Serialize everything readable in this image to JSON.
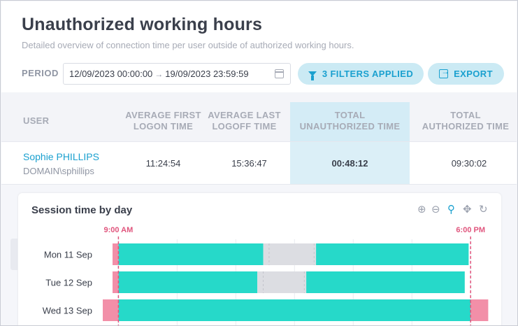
{
  "header": {
    "title": "Unauthorized working hours",
    "subtitle": "Detailed overview of connection time per user outside of authorized working hours."
  },
  "period": {
    "label": "PERIOD",
    "start": "12/09/2023 00:00:00",
    "arrow": "→",
    "end": "19/09/2023 23:59:59"
  },
  "actions": {
    "filters_label": "3 FILTERS APPLIED",
    "export_label": "EXPORT"
  },
  "table": {
    "headers": {
      "user": "USER",
      "avg_first_1": "AVERAGE FIRST",
      "avg_first_2": "LOGON TIME",
      "avg_last_1": "AVERAGE LAST",
      "avg_last_2": "LOGOFF TIME",
      "total_unauth_1": "TOTAL",
      "total_unauth_2": "UNAUTHORIZED TIME",
      "total_auth_1": "TOTAL",
      "total_auth_2": "AUTHORIZED TIME"
    },
    "row": {
      "user_name": "Sophie PHILLIPS",
      "user_domain": "DOMAIN\\sphillips",
      "avg_first_logon": "11:24:54",
      "avg_last_logoff": "15:36:47",
      "total_unauthorized": "00:48:12",
      "total_authorized": "09:30:02"
    }
  },
  "chart": {
    "title": "Session time by day",
    "toolbar_icons": [
      "zoom-in-icon",
      "zoom-out-icon",
      "magnifier-icon",
      "pan-icon",
      "reset-icon"
    ],
    "colors": {
      "authorized": "#26d9c9",
      "unauthorized": "#f28fa8",
      "idle": "#dcdde2",
      "marker": "#e0557d"
    }
  },
  "chart_data": {
    "type": "bar",
    "orientation": "horizontal-timeline",
    "title": "Session time by day",
    "markers": [
      {
        "label": "9:00 AM",
        "hour": 9
      },
      {
        "label": "6:00 PM",
        "hour": 18
      }
    ],
    "x_range_hours": [
      8.6,
      18.55
    ],
    "categories": [
      "Mon 11 Sep",
      "Tue 12 Sep",
      "Wed 13 Sep"
    ],
    "series": [
      {
        "day": "Mon 11 Sep",
        "segments": [
          {
            "start": 8.85,
            "end": 9.0,
            "kind": "unauthorized"
          },
          {
            "start": 9.0,
            "end": 12.7,
            "kind": "authorized"
          },
          {
            "start": 12.7,
            "end": 14.05,
            "kind": "idle"
          },
          {
            "start": 14.05,
            "end": 17.95,
            "kind": "authorized"
          }
        ]
      },
      {
        "day": "Tue 12 Sep",
        "segments": [
          {
            "start": 8.85,
            "end": 9.0,
            "kind": "unauthorized"
          },
          {
            "start": 9.0,
            "end": 12.55,
            "kind": "authorized"
          },
          {
            "start": 12.55,
            "end": 13.8,
            "kind": "idle"
          },
          {
            "start": 13.8,
            "end": 17.85,
            "kind": "authorized"
          }
        ]
      },
      {
        "day": "Wed 13 Sep",
        "segments": [
          {
            "start": 8.6,
            "end": 9.0,
            "kind": "unauthorized"
          },
          {
            "start": 9.0,
            "end": 18.0,
            "kind": "authorized"
          },
          {
            "start": 18.0,
            "end": 18.45,
            "kind": "unauthorized"
          }
        ]
      }
    ]
  }
}
